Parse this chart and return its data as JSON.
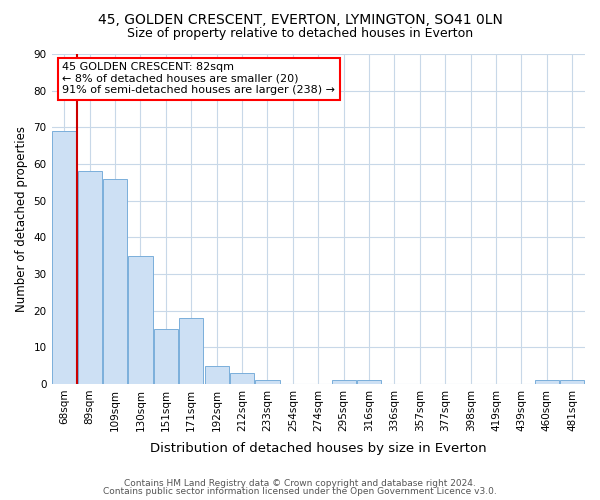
{
  "title1": "45, GOLDEN CRESCENT, EVERTON, LYMINGTON, SO41 0LN",
  "title2": "Size of property relative to detached houses in Everton",
  "xlabel": "Distribution of detached houses by size in Everton",
  "ylabel": "Number of detached properties",
  "categories": [
    "68sqm",
    "89sqm",
    "109sqm",
    "130sqm",
    "151sqm",
    "171sqm",
    "192sqm",
    "212sqm",
    "233sqm",
    "254sqm",
    "274sqm",
    "295sqm",
    "316sqm",
    "336sqm",
    "357sqm",
    "377sqm",
    "398sqm",
    "419sqm",
    "439sqm",
    "460sqm",
    "481sqm"
  ],
  "values": [
    69,
    58,
    56,
    35,
    15,
    18,
    5,
    3,
    1,
    0,
    0,
    1,
    1,
    0,
    0,
    0,
    0,
    0,
    0,
    1,
    1
  ],
  "bar_color": "#cde0f4",
  "bar_edge_color": "#7aaedb",
  "vline_x": 0.5,
  "vline_color": "#cc0000",
  "annotation_line1": "45 GOLDEN CRESCENT: 82sqm",
  "annotation_line2": "← 8% of detached houses are smaller (20)",
  "annotation_line3": "91% of semi-detached houses are larger (238) →",
  "annotation_box_color": "white",
  "annotation_box_edge": "red",
  "ylim": [
    0,
    90
  ],
  "yticks": [
    0,
    10,
    20,
    30,
    40,
    50,
    60,
    70,
    80,
    90
  ],
  "footer1": "Contains HM Land Registry data © Crown copyright and database right 2024.",
  "footer2": "Contains public sector information licensed under the Open Government Licence v3.0.",
  "bg_color": "white",
  "grid_color": "#c8d8e8",
  "title1_fontsize": 10,
  "title2_fontsize": 9,
  "xlabel_fontsize": 9.5,
  "ylabel_fontsize": 8.5,
  "tick_fontsize": 7.5,
  "footer_fontsize": 6.5,
  "ann_fontsize": 8
}
